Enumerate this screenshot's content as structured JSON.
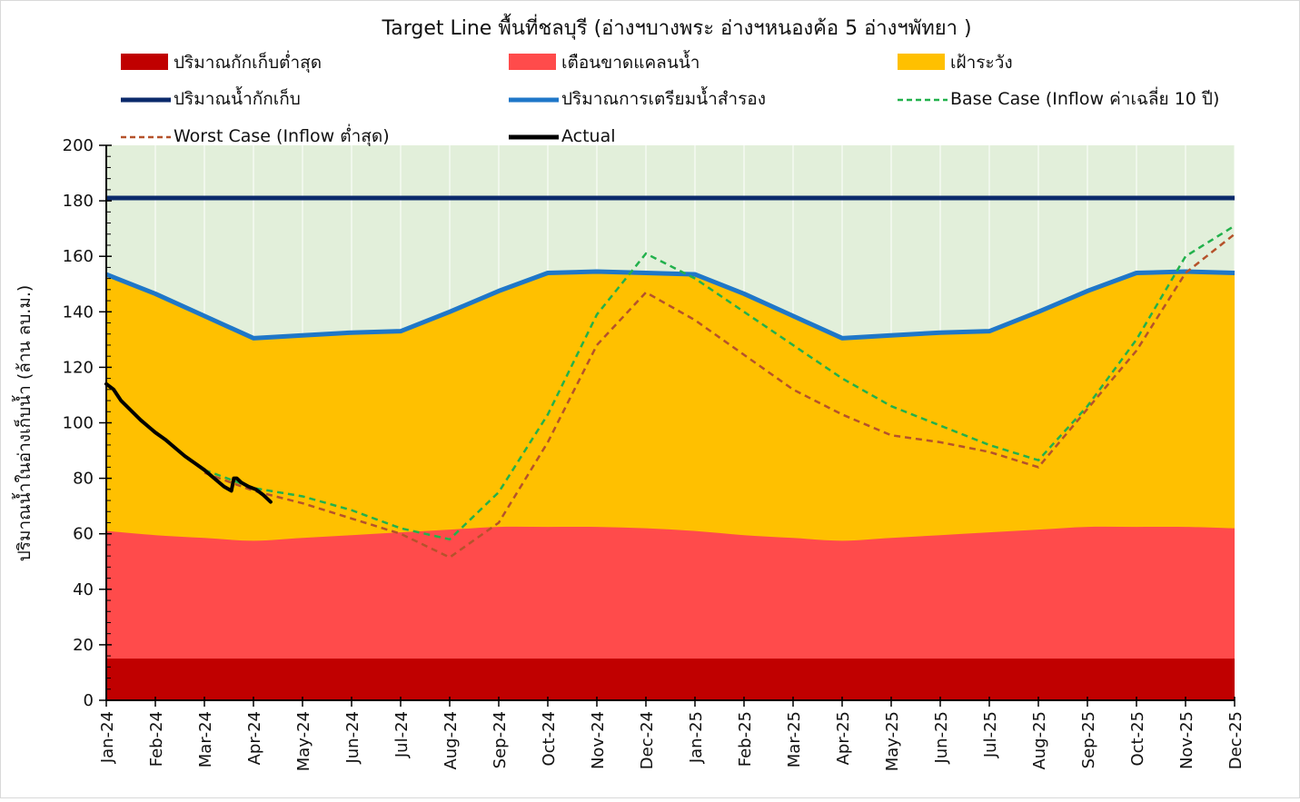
{
  "chart_data": {
    "type": "area",
    "title": "Target Line พื้นที่ชลบุรี (อ่างฯบางพระ อ่างฯหนองค้อ 5 อ่างฯพัทยา )",
    "ylabel": "ปริมาณน้ำในอ่างเก็บน้ำ (ล้าน ลบ.ม.)",
    "xlabel": "",
    "ylim": [
      0,
      200
    ],
    "yticks": [
      "0",
      "20",
      "40",
      "60",
      "80",
      "100",
      "120",
      "140",
      "160",
      "180",
      "200"
    ],
    "yticks_values": [
      0,
      20,
      40,
      60,
      80,
      100,
      120,
      140,
      160,
      180,
      200
    ],
    "categories": [
      "Jan-24",
      "Feb-24",
      "Mar-24",
      "Apr-24",
      "May-24",
      "Jun-24",
      "Jul-24",
      "Aug-24",
      "Sep-24",
      "Oct-24",
      "Nov-24",
      "Dec-24",
      "Jan-25",
      "Feb-25",
      "Mar-25",
      "Apr-25",
      "May-25",
      "Jun-25",
      "Jul-25",
      "Aug-25",
      "Sep-25",
      "Oct-25",
      "Nov-25",
      "Dec-25"
    ],
    "grid": true,
    "legend_placement": "top",
    "legend": [
      {
        "label": "ปริมาณกักเก็บต่ำสุด",
        "kind": "box",
        "color": "#C00000"
      },
      {
        "label": "เตือนขาดแคลนน้ำ",
        "kind": "box",
        "color": "#FF4B4B"
      },
      {
        "label": "เฝ้าระวัง",
        "kind": "box",
        "color": "#FFC000"
      },
      {
        "label": "ปริมาณน้ำกักเก็บ",
        "kind": "line",
        "color": "#0B2A6B"
      },
      {
        "label": "ปริมาณการเตรียมน้ำสำรอง",
        "kind": "line",
        "color": "#1F77C8"
      },
      {
        "label": "Base Case (Inflow ค่าเฉลี่ย 10 ปี)",
        "kind": "dash",
        "color": "#22B14C"
      },
      {
        "label": "Worst Case (Inflow ต่ำสุด)",
        "kind": "dash",
        "color": "#B5522B"
      },
      {
        "label": "Actual",
        "kind": "line",
        "color": "#000000"
      }
    ],
    "colors": {
      "background_zone": "#E2EFDA",
      "min_storage": "#C00000",
      "shortage_warning": "#FF4B4B",
      "watch": "#FFC000",
      "capacity": "#0B2A6B",
      "reserve": "#1F77C8",
      "base_case": "#22B14C",
      "worst_case": "#B5522B",
      "actual": "#000000"
    },
    "series": [
      {
        "name": "ปริมาณกักเก็บต่ำสุด",
        "values": [
          15,
          15,
          15,
          15,
          15,
          15,
          15,
          15,
          15,
          15,
          15,
          15,
          15,
          15,
          15,
          15,
          15,
          15,
          15,
          15,
          15,
          15,
          15,
          15
        ]
      },
      {
        "name": "เตือนขาดแคลนน้ำ",
        "values": [
          61,
          59.5,
          58.5,
          57.5,
          58.5,
          59.5,
          60.5,
          61.5,
          62.5,
          62.5,
          62.5,
          62,
          61,
          59.5,
          58.5,
          57.5,
          58.5,
          59.5,
          60.5,
          61.5,
          62.5,
          62.5,
          62.5,
          62
        ]
      },
      {
        "name": "ปริมาณการเตรียมน้ำสำรอง",
        "values": [
          153.5,
          146.5,
          138.5,
          130.5,
          131.5,
          132.5,
          133,
          140,
          147.5,
          154,
          154.5,
          154,
          153.5,
          146.5,
          138.5,
          130.5,
          131.5,
          132.5,
          133,
          140,
          147.5,
          154,
          154.5,
          154
        ]
      },
      {
        "name": "ปริมาณน้ำกักเก็บ",
        "values": [
          181,
          181,
          181,
          181,
          181,
          181,
          181,
          181,
          181,
          181,
          181,
          181,
          181,
          181,
          181,
          181,
          181,
          181,
          181,
          181,
          181,
          181,
          181,
          181
        ]
      },
      {
        "name": "Base Case (Inflow ค่าเฉลี่ย 10 ปี)",
        "x": [
          2,
          3,
          4,
          5,
          6,
          7,
          8,
          9,
          10,
          11,
          12,
          13,
          14,
          15,
          16,
          17,
          18,
          19,
          20,
          21,
          22,
          23
        ],
        "values": [
          83,
          76.5,
          73.5,
          68.5,
          62,
          58,
          75,
          103,
          139,
          161,
          152,
          140,
          128,
          116,
          106,
          99,
          92,
          86.5,
          106,
          130,
          160,
          171
        ]
      },
      {
        "name": "Worst Case (Inflow ต่ำสุด)",
        "x": [
          2,
          3,
          4,
          5,
          6,
          7,
          8,
          9,
          10,
          11,
          12,
          13,
          14,
          15,
          16,
          17,
          18,
          19,
          20,
          21,
          22,
          23
        ],
        "values": [
          82,
          75.5,
          71,
          65.5,
          60,
          51.5,
          64,
          93,
          128,
          147,
          137,
          124.5,
          112,
          103,
          95.5,
          93,
          89.5,
          84,
          105,
          126,
          154,
          168
        ]
      },
      {
        "name": "Actual",
        "x": [
          0,
          0.15,
          0.3,
          0.5,
          0.7,
          0.9,
          1.0,
          1.2,
          1.4,
          1.6,
          1.8,
          2.0,
          2.2,
          2.4,
          2.55,
          2.6,
          2.66,
          2.75,
          2.9,
          3.05,
          3.2,
          3.35
        ],
        "values": [
          114,
          112,
          108,
          104.5,
          101,
          98,
          96.5,
          94,
          91,
          88,
          85.5,
          83,
          80,
          77,
          75.5,
          80,
          80,
          78.5,
          77,
          76,
          74,
          71.5
        ]
      }
    ]
  }
}
